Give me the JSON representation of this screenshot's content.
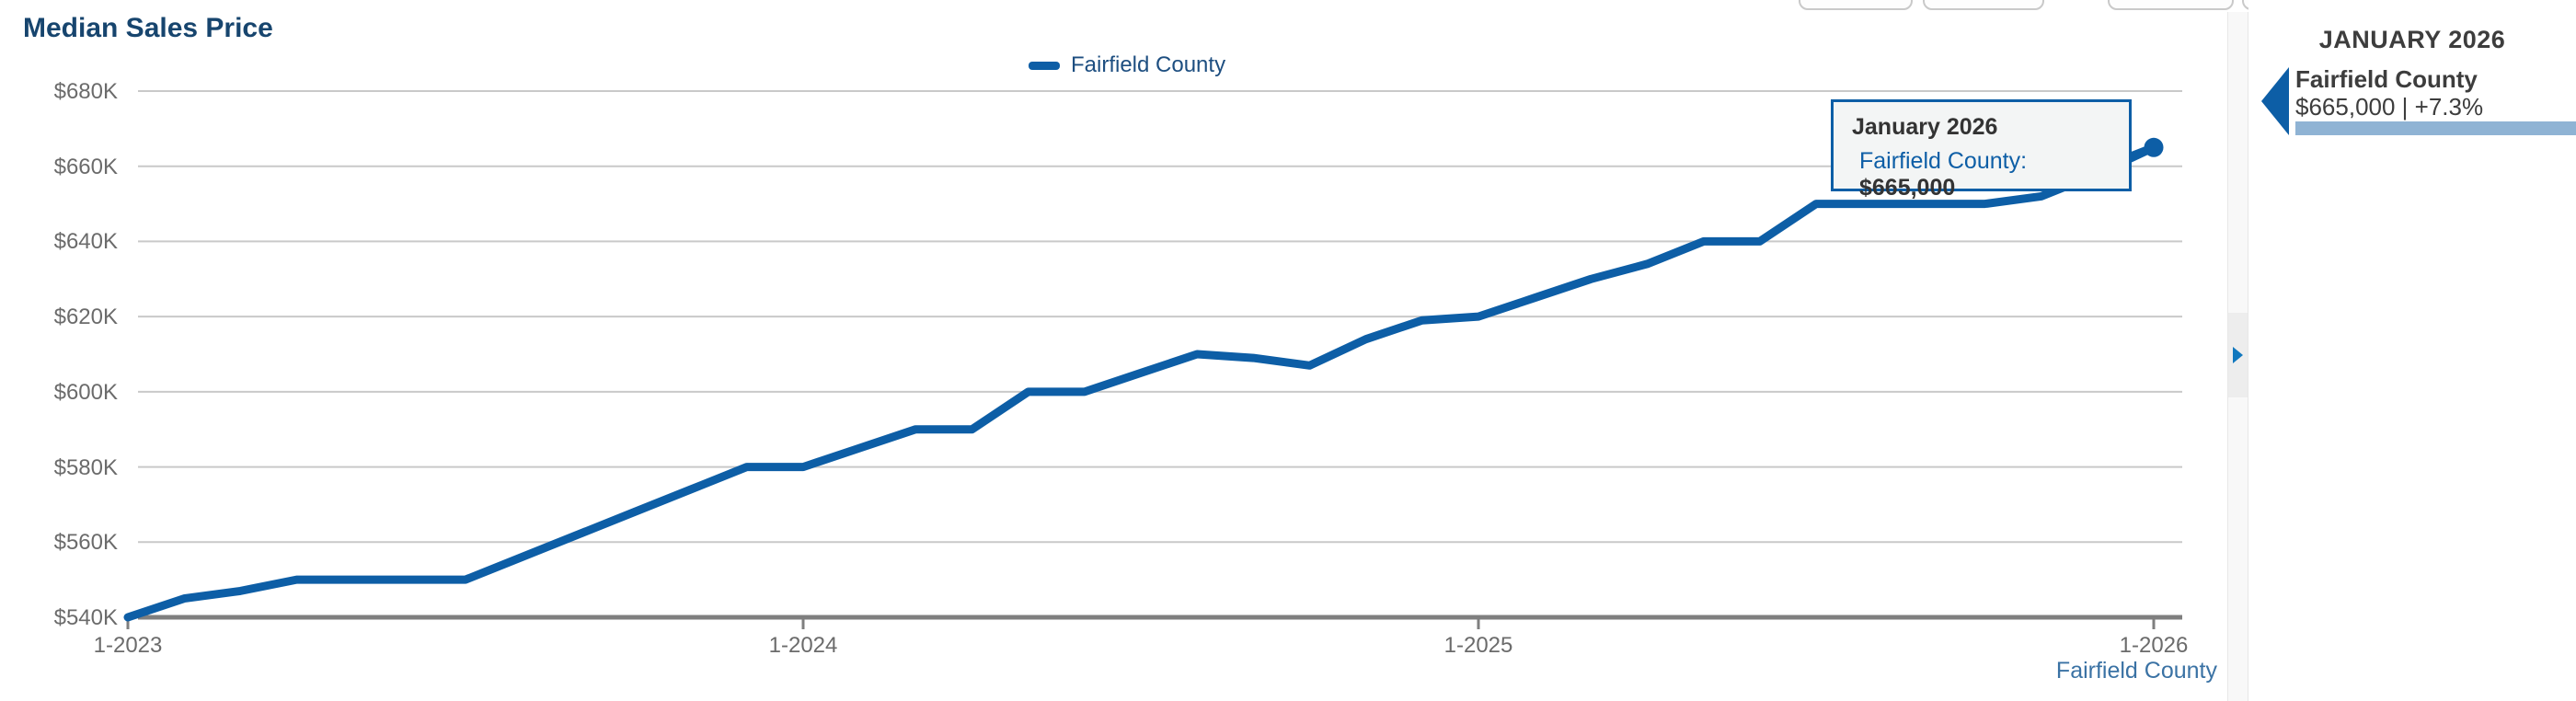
{
  "title": "Median Sales Price",
  "legend": {
    "label": "Fairfield County"
  },
  "tooltip": {
    "title": "January 2026",
    "series_label": "Fairfield County:",
    "value": "$665,000"
  },
  "side_panel": {
    "header": "JANUARY 2026",
    "series_name": "Fairfield County",
    "value_text": "$665,000 | +7.3%"
  },
  "footer_series_label": "Fairfield County",
  "colors": {
    "line": "#0d5ea6",
    "legend_text": "#1d4e80",
    "title_text": "#17456e",
    "axis_text": "#6b6b6b",
    "gridline": "#c9c9c9",
    "baseline": "#7f7f7f",
    "tooltip_border": "#0d5ea6",
    "tooltip_bg": "#f3f5f5",
    "panel_text": "#3d3d3d",
    "panel_bar": "#8fb3d4",
    "panel_arrow": "#0d5ea6",
    "toggle_arrow": "#1178be",
    "footer_link": "#3a72a4"
  },
  "chart_data": {
    "type": "line",
    "title": "Median Sales Price",
    "x_labels": [
      "1-2023",
      "2-2023",
      "3-2023",
      "4-2023",
      "5-2023",
      "6-2023",
      "7-2023",
      "8-2023",
      "9-2023",
      "10-2023",
      "11-2023",
      "12-2023",
      "1-2024",
      "2-2024",
      "3-2024",
      "4-2024",
      "5-2024",
      "6-2024",
      "7-2024",
      "8-2024",
      "9-2024",
      "10-2024",
      "11-2024",
      "12-2024",
      "1-2025",
      "2-2025",
      "3-2025",
      "4-2025",
      "5-2025",
      "6-2025",
      "7-2025",
      "8-2025",
      "9-2025",
      "10-2025",
      "11-2025",
      "12-2025",
      "1-2026"
    ],
    "series": [
      {
        "name": "Fairfield County",
        "values_thousands": [
          540,
          545,
          547,
          550,
          550,
          550,
          550,
          556,
          562,
          568,
          574,
          580,
          580,
          585,
          590,
          590,
          600,
          600,
          605,
          610,
          609,
          607,
          614,
          619,
          620,
          625,
          630,
          634,
          640,
          640,
          650,
          650,
          650,
          650,
          652,
          658,
          665
        ]
      }
    ],
    "y_tick_values": [
      540,
      560,
      580,
      600,
      620,
      640,
      660,
      680
    ],
    "y_tick_labels": [
      "$540K",
      "$560K",
      "$580K",
      "$600K",
      "$620K",
      "$640K",
      "$660K",
      "$680K"
    ],
    "x_tick_indices": [
      0,
      12,
      24,
      36
    ],
    "x_tick_labels": [
      "1-2023",
      "1-2024",
      "1-2025",
      "1-2026"
    ],
    "ylim": [
      540,
      680
    ],
    "grid": true,
    "legend_position": "top-center",
    "highlight": {
      "x_label": "1-2026",
      "month_title": "January 2026",
      "value": 665000,
      "display": "$665,000",
      "yoy_change": "+7.3%"
    }
  }
}
